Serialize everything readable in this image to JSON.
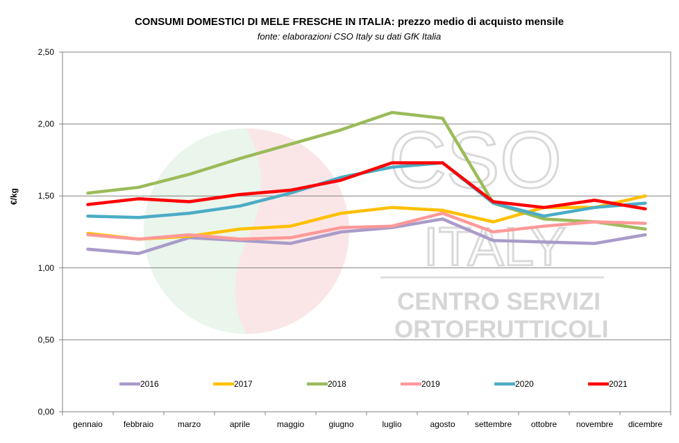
{
  "title": "CONSUMI DOMESTICI DI MELE FRESCHE IN ITALIA:  prezzo medio di acquisto mensile",
  "subtitle": "fonte: elaborazioni CSO Italy su dati GfK Italia",
  "watermark": {
    "logo_letters_top": "CSO",
    "logo_letters_bottom": "ITALY",
    "line1": "CENTRO SERVIZI",
    "line2": "ORTOFRUTTICOLI"
  },
  "chart_data": {
    "type": "line",
    "title": "CONSUMI DOMESTICI DI MELE FRESCHE IN ITALIA:  prezzo medio di acquisto mensile",
    "subtitle": "fonte: elaborazioni CSO Italy su dati GfK Italia",
    "xlabel": "",
    "ylabel": "€/kg",
    "ylim": [
      0,
      2.5
    ],
    "yticks": [
      "0,00",
      "0,50",
      "1,00",
      "1,50",
      "2,00",
      "2,50"
    ],
    "grid": true,
    "legend_position": "bottom-inside",
    "categories": [
      "gennaio",
      "febbraio",
      "marzo",
      "aprile",
      "maggio",
      "giugno",
      "luglio",
      "agosto",
      "settembre",
      "ottobre",
      "novembre",
      "dicembre"
    ],
    "series": [
      {
        "name": "2016",
        "color": "#a99bc9",
        "values": [
          1.13,
          1.1,
          1.21,
          1.19,
          1.17,
          1.25,
          1.28,
          1.34,
          1.19,
          1.18,
          1.17,
          1.23
        ]
      },
      {
        "name": "2017",
        "color": "#ffc000",
        "values": [
          1.24,
          1.2,
          1.22,
          1.27,
          1.29,
          1.38,
          1.42,
          1.4,
          1.32,
          1.42,
          1.42,
          1.5
        ]
      },
      {
        "name": "2018",
        "color": "#9bbb59",
        "values": [
          1.52,
          1.56,
          1.65,
          1.76,
          1.86,
          1.96,
          2.08,
          2.04,
          1.45,
          1.34,
          1.32,
          1.27
        ]
      },
      {
        "name": "2019",
        "color": "#ff9999",
        "values": [
          1.23,
          1.2,
          1.23,
          1.2,
          1.21,
          1.28,
          1.29,
          1.38,
          1.25,
          1.29,
          1.32,
          1.31
        ]
      },
      {
        "name": "2020",
        "color": "#4bacc6",
        "values": [
          1.36,
          1.35,
          1.38,
          1.43,
          1.52,
          1.63,
          1.7,
          1.73,
          1.45,
          1.36,
          1.42,
          1.45
        ]
      },
      {
        "name": "2021",
        "color": "#ff0000",
        "values": [
          1.44,
          1.48,
          1.46,
          1.51,
          1.54,
          1.61,
          1.73,
          1.73,
          1.46,
          1.42,
          1.47,
          1.41
        ]
      }
    ]
  }
}
